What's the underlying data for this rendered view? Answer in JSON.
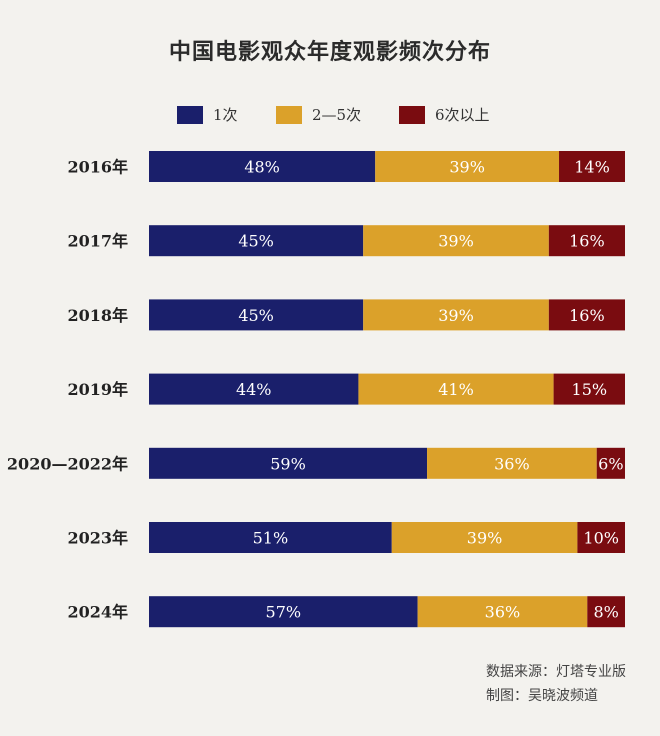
{
  "title": "中国电影观众年度观影频次分布",
  "source_line1": "数据来源：灯塔专业版",
  "source_line2": "制图：吴晓波频道",
  "chart_data": {
    "type": "bar",
    "orientation": "horizontal",
    "stacked": true,
    "percent_stacked": true,
    "title": "中国电影观众年度观影频次分布",
    "categories": [
      "2016年",
      "2017年",
      "2018年",
      "2019年",
      "2020—2022年",
      "2023年",
      "2024年"
    ],
    "series": [
      {
        "name": "1次",
        "color": "#1a1f6b",
        "values": [
          48,
          45,
          45,
          44,
          59,
          51,
          57
        ],
        "labels": [
          "48%",
          "45%",
          "45%",
          "44%",
          "59%",
          "51%",
          "57%"
        ]
      },
      {
        "name": "2—5次",
        "color": "#dba12a",
        "values": [
          39,
          39,
          39,
          41,
          36,
          39,
          36
        ],
        "labels": [
          "39%",
          "39%",
          "39%",
          "41%",
          "36%",
          "39%",
          "36%"
        ]
      },
      {
        "name": "6次以上",
        "color": "#7a0c10",
        "values": [
          14,
          16,
          16,
          15,
          6,
          10,
          8
        ],
        "labels": [
          "14%",
          "16%",
          "16%",
          "15%",
          "6%",
          "10%",
          "8%"
        ]
      }
    ],
    "legend_position": "top",
    "grid": false
  }
}
